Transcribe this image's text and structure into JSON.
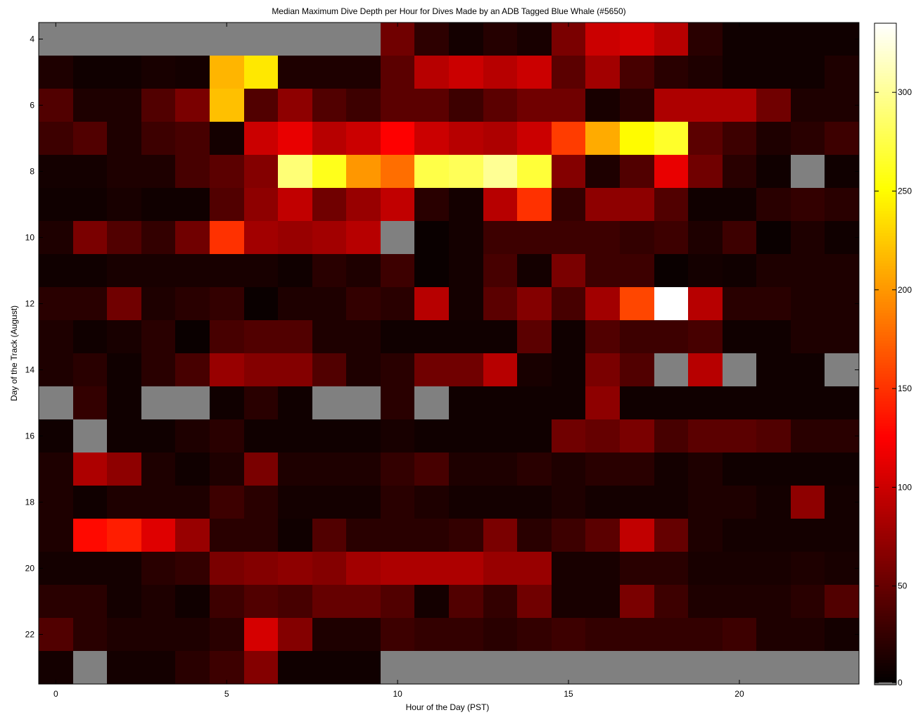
{
  "chart_data": {
    "type": "heatmap",
    "title": "Median Maximum Dive Depth per Hour for Dives Made by an ADB Tagged Blue Whale (#5650)",
    "xlabel": "Hour of the Day (PST)",
    "ylabel": "Day of the Track (August)",
    "x_ticks": [
      "0",
      "5",
      "10",
      "15",
      "20"
    ],
    "y_ticks": [
      "4",
      "6",
      "8",
      "10",
      "12",
      "14",
      "16",
      "18",
      "20",
      "22"
    ],
    "colorbar_ticks": [
      "0",
      "50",
      "100",
      "150",
      "200",
      "250",
      "300"
    ],
    "colormap": "hot",
    "missing_color": "#808080",
    "xlim": [
      -0.5,
      23.5
    ],
    "ylim": [
      3.5,
      23.5
    ],
    "clim": [
      0,
      335
    ],
    "hours": [
      0,
      1,
      2,
      3,
      4,
      5,
      6,
      7,
      8,
      9,
      10,
      11,
      12,
      13,
      14,
      15,
      16,
      17,
      18,
      19,
      20,
      21,
      22,
      23
    ],
    "days": [
      4,
      5,
      6,
      7,
      8,
      9,
      10,
      11,
      12,
      13,
      14,
      15,
      16,
      17,
      18,
      19,
      20,
      21,
      22,
      23
    ],
    "values": [
      [
        null,
        null,
        null,
        null,
        null,
        null,
        null,
        null,
        null,
        null,
        55,
        22,
        10,
        18,
        12,
        60,
        100,
        105,
        90,
        20,
        8,
        8,
        8,
        8
      ],
      [
        15,
        8,
        8,
        12,
        10,
        215,
        240,
        15,
        15,
        15,
        45,
        90,
        100,
        90,
        100,
        45,
        80,
        35,
        20,
        15,
        8,
        8,
        8,
        15
      ],
      [
        40,
        15,
        15,
        40,
        60,
        220,
        40,
        70,
        40,
        30,
        45,
        45,
        30,
        45,
        55,
        55,
        12,
        20,
        85,
        85,
        85,
        55,
        15,
        15
      ],
      [
        30,
        40,
        15,
        30,
        35,
        10,
        100,
        115,
        90,
        100,
        125,
        100,
        90,
        85,
        100,
        155,
        210,
        250,
        265,
        45,
        30,
        15,
        20,
        30
      ],
      [
        10,
        10,
        15,
        15,
        35,
        45,
        65,
        290,
        260,
        200,
        180,
        275,
        280,
        300,
        270,
        65,
        15,
        40,
        115,
        55,
        20,
        8,
        null,
        8
      ],
      [
        8,
        8,
        12,
        8,
        8,
        40,
        70,
        95,
        55,
        75,
        95,
        20,
        10,
        90,
        150,
        25,
        70,
        70,
        40,
        8,
        8,
        20,
        25,
        20
      ],
      [
        15,
        60,
        40,
        25,
        55,
        150,
        80,
        75,
        80,
        90,
        null,
        5,
        10,
        30,
        30,
        30,
        30,
        25,
        30,
        15,
        30,
        5,
        15,
        8
      ],
      [
        8,
        8,
        12,
        12,
        12,
        12,
        12,
        8,
        20,
        15,
        30,
        5,
        10,
        35,
        10,
        60,
        30,
        30,
        5,
        10,
        8,
        15,
        15,
        15
      ],
      [
        20,
        20,
        55,
        15,
        20,
        25,
        5,
        15,
        15,
        25,
        20,
        90,
        10,
        45,
        65,
        35,
        80,
        160,
        335,
        90,
        20,
        20,
        15,
        15
      ],
      [
        15,
        8,
        12,
        20,
        5,
        35,
        40,
        40,
        15,
        15,
        8,
        8,
        8,
        8,
        45,
        8,
        40,
        30,
        30,
        35,
        8,
        8,
        15,
        15
      ],
      [
        15,
        20,
        8,
        20,
        35,
        75,
        65,
        65,
        40,
        15,
        20,
        55,
        55,
        90,
        12,
        8,
        60,
        40,
        null,
        90,
        null,
        8,
        8,
        null
      ],
      [
        null,
        25,
        8,
        null,
        null,
        8,
        20,
        8,
        null,
        null,
        20,
        null,
        8,
        8,
        8,
        8,
        70,
        8,
        8,
        8,
        8,
        8,
        8,
        8
      ],
      [
        8,
        null,
        8,
        8,
        15,
        20,
        8,
        8,
        8,
        8,
        12,
        8,
        8,
        8,
        8,
        55,
        50,
        60,
        35,
        45,
        45,
        40,
        20,
        20
      ],
      [
        15,
        85,
        70,
        15,
        8,
        15,
        60,
        15,
        15,
        15,
        25,
        35,
        15,
        15,
        20,
        15,
        20,
        20,
        10,
        15,
        8,
        8,
        8,
        8
      ],
      [
        15,
        8,
        15,
        15,
        15,
        30,
        20,
        10,
        10,
        10,
        20,
        15,
        10,
        10,
        10,
        15,
        10,
        10,
        10,
        15,
        15,
        10,
        70,
        10
      ],
      [
        15,
        130,
        140,
        110,
        75,
        20,
        20,
        8,
        40,
        20,
        20,
        20,
        25,
        60,
        20,
        30,
        45,
        95,
        50,
        15,
        10,
        10,
        10,
        10
      ],
      [
        10,
        10,
        10,
        20,
        25,
        60,
        65,
        70,
        65,
        80,
        85,
        85,
        85,
        75,
        75,
        12,
        12,
        20,
        20,
        12,
        12,
        12,
        15,
        12
      ],
      [
        20,
        20,
        10,
        15,
        8,
        30,
        40,
        35,
        50,
        50,
        40,
        10,
        40,
        25,
        55,
        12,
        12,
        60,
        30,
        15,
        15,
        15,
        20,
        40
      ],
      [
        40,
        20,
        15,
        15,
        15,
        20,
        105,
        65,
        15,
        15,
        30,
        25,
        25,
        20,
        25,
        30,
        25,
        25,
        25,
        25,
        30,
        15,
        15,
        10
      ],
      [
        10,
        null,
        10,
        10,
        20,
        30,
        65,
        8,
        8,
        8,
        null,
        null,
        null,
        null,
        null,
        null,
        null,
        null,
        null,
        null,
        null,
        null,
        null,
        null
      ]
    ]
  }
}
